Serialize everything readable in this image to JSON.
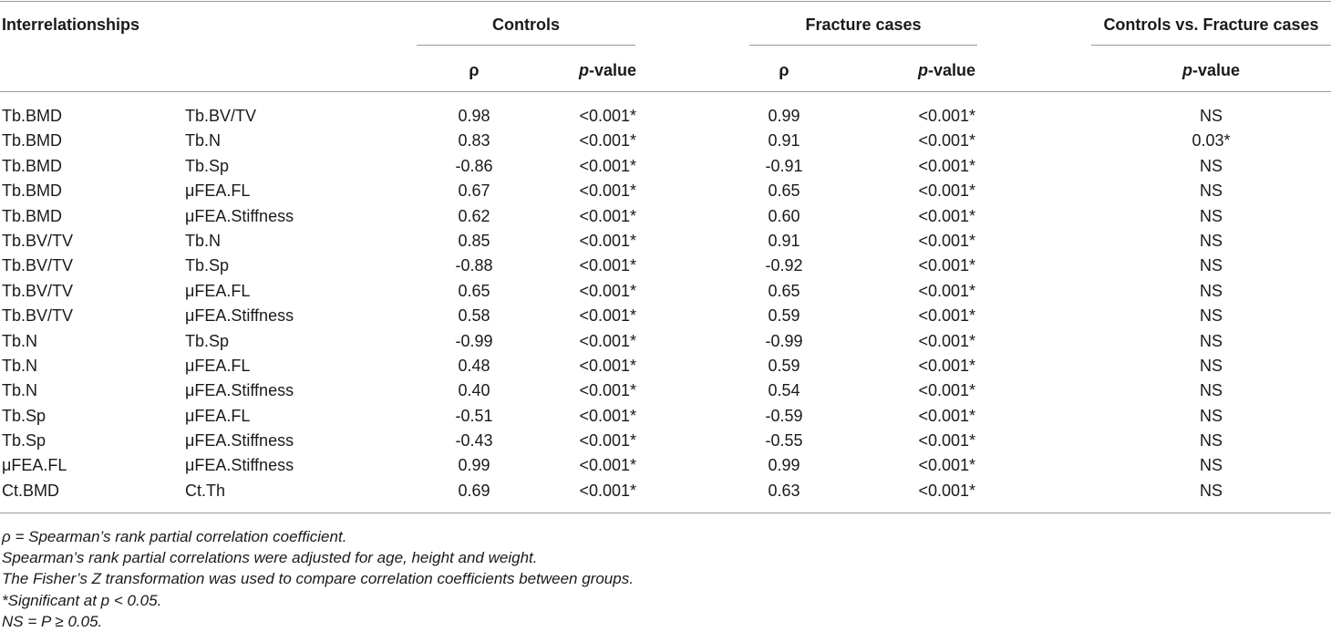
{
  "header": {
    "interrelationships": "Interrelationships",
    "controls": "Controls",
    "fracture_cases": "Fracture cases",
    "comparison": "Controls vs. Fracture cases",
    "rho": "ρ",
    "p_italic": "p",
    "p_suffix": "-value"
  },
  "rows": [
    {
      "a": "Tb.BMD",
      "b": "Tb.BV/TV",
      "rho_c": "0.98",
      "p_c": "<0.001*",
      "rho_f": "0.99",
      "p_f": "<0.001*",
      "cmp": "NS"
    },
    {
      "a": "Tb.BMD",
      "b": "Tb.N",
      "rho_c": "0.83",
      "p_c": "<0.001*",
      "rho_f": "0.91",
      "p_f": "<0.001*",
      "cmp": "0.03*"
    },
    {
      "a": "Tb.BMD",
      "b": "Tb.Sp",
      "rho_c": "-0.86",
      "p_c": "<0.001*",
      "rho_f": "-0.91",
      "p_f": "<0.001*",
      "cmp": "NS"
    },
    {
      "a": "Tb.BMD",
      "b": "μFEA.FL",
      "rho_c": "0.67",
      "p_c": "<0.001*",
      "rho_f": "0.65",
      "p_f": "<0.001*",
      "cmp": "NS"
    },
    {
      "a": "Tb.BMD",
      "b": "μFEA.Stiffness",
      "rho_c": "0.62",
      "p_c": "<0.001*",
      "rho_f": "0.60",
      "p_f": "<0.001*",
      "cmp": "NS"
    },
    {
      "a": "Tb.BV/TV",
      "b": "Tb.N",
      "rho_c": "0.85",
      "p_c": "<0.001*",
      "rho_f": "0.91",
      "p_f": "<0.001*",
      "cmp": "NS"
    },
    {
      "a": "Tb.BV/TV",
      "b": "Tb.Sp",
      "rho_c": "-0.88",
      "p_c": "<0.001*",
      "rho_f": "-0.92",
      "p_f": "<0.001*",
      "cmp": "NS"
    },
    {
      "a": "Tb.BV/TV",
      "b": "μFEA.FL",
      "rho_c": "0.65",
      "p_c": "<0.001*",
      "rho_f": "0.65",
      "p_f": "<0.001*",
      "cmp": "NS"
    },
    {
      "a": "Tb.BV/TV",
      "b": "μFEA.Stiffness",
      "rho_c": "0.58",
      "p_c": "<0.001*",
      "rho_f": "0.59",
      "p_f": "<0.001*",
      "cmp": "NS"
    },
    {
      "a": "Tb.N",
      "b": "Tb.Sp",
      "rho_c": "-0.99",
      "p_c": "<0.001*",
      "rho_f": "-0.99",
      "p_f": "<0.001*",
      "cmp": "NS"
    },
    {
      "a": "Tb.N",
      "b": "μFEA.FL",
      "rho_c": "0.48",
      "p_c": "<0.001*",
      "rho_f": "0.59",
      "p_f": "<0.001*",
      "cmp": "NS"
    },
    {
      "a": "Tb.N",
      "b": "μFEA.Stiffness",
      "rho_c": "0.40",
      "p_c": "<0.001*",
      "rho_f": "0.54",
      "p_f": "<0.001*",
      "cmp": "NS"
    },
    {
      "a": "Tb.Sp",
      "b": "μFEA.FL",
      "rho_c": "-0.51",
      "p_c": "<0.001*",
      "rho_f": "-0.59",
      "p_f": "<0.001*",
      "cmp": "NS"
    },
    {
      "a": "Tb.Sp",
      "b": "μFEA.Stiffness",
      "rho_c": "-0.43",
      "p_c": "<0.001*",
      "rho_f": "-0.55",
      "p_f": "<0.001*",
      "cmp": "NS"
    },
    {
      "a": "μFEA.FL",
      "b": "μFEA.Stiffness",
      "rho_c": "0.99",
      "p_c": "<0.001*",
      "rho_f": "0.99",
      "p_f": "<0.001*",
      "cmp": "NS"
    },
    {
      "a": "Ct.BMD",
      "b": "Ct.Th",
      "rho_c": "0.69",
      "p_c": "<0.001*",
      "rho_f": "0.63",
      "p_f": "<0.001*",
      "cmp": "NS"
    }
  ],
  "notes": [
    "ρ = Spearman’s rank partial correlation coefficient.",
    "Spearman’s rank partial correlations were adjusted for age, height and weight.",
    "The Fisher’s Z transformation was used to compare correlation coefficients between groups.",
    "*Significant at p < 0.05.",
    "NS = P ≥ 0.05."
  ]
}
